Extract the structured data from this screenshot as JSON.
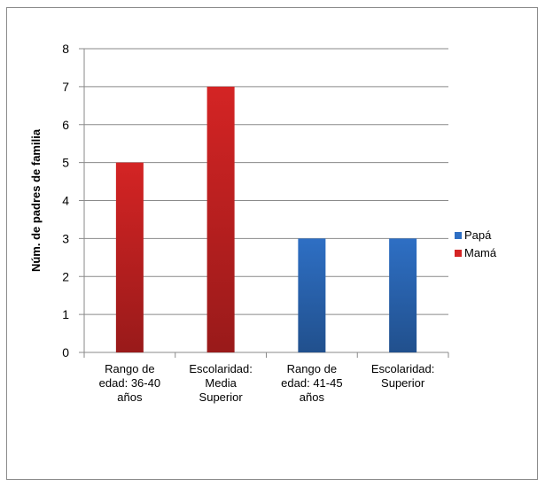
{
  "chart_data": {
    "type": "bar",
    "title": "",
    "xlabel": "",
    "ylabel": "Núm. de padres de familia",
    "ylim": [
      0,
      8
    ],
    "yticks": [
      0,
      1,
      2,
      3,
      4,
      5,
      6,
      7,
      8
    ],
    "grid": true,
    "legend_position": "right",
    "categories": [
      [
        "Rango de",
        "edad: 36-40",
        "años"
      ],
      [
        "Escolaridad:",
        "Media",
        "Superior"
      ],
      [
        "Rango de",
        "edad: 41-45",
        "años"
      ],
      [
        "Escolaridad:",
        "Superior"
      ]
    ],
    "series": [
      {
        "name": "Papá",
        "color": "#2e6fc4",
        "values": [
          null,
          null,
          3,
          3
        ]
      },
      {
        "name": "Mamá",
        "color": "#d42424",
        "values": [
          5,
          7,
          null,
          null
        ]
      }
    ]
  }
}
